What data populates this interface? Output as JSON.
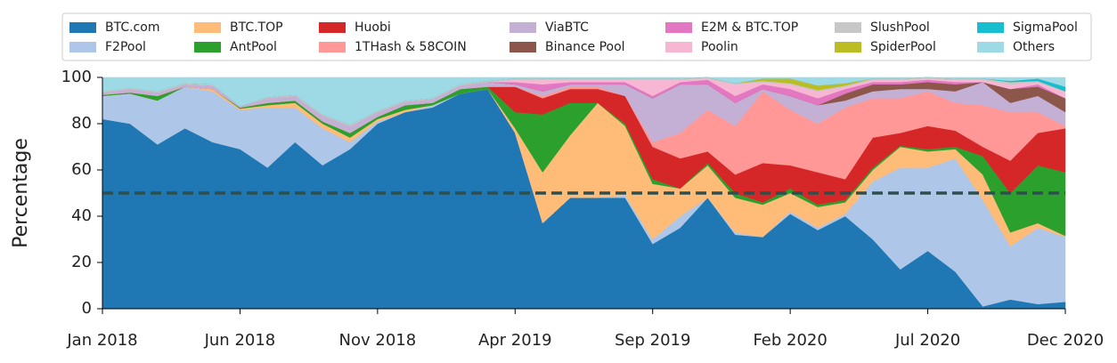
{
  "chart_data": {
    "type": "stacked_area",
    "y_label": "Percentage",
    "x": [
      "2018-01",
      "2018-02",
      "2018-03",
      "2018-04",
      "2018-05",
      "2018-06",
      "2018-07",
      "2018-08",
      "2018-09",
      "2018-10",
      "2018-11",
      "2018-12",
      "2019-01",
      "2019-02",
      "2019-03",
      "2019-04",
      "2019-05",
      "2019-06",
      "2019-07",
      "2019-08",
      "2019-09",
      "2019-10",
      "2019-11",
      "2019-12",
      "2020-01",
      "2020-02",
      "2020-03",
      "2020-04",
      "2020-05",
      "2020-06",
      "2020-07",
      "2020-08",
      "2020-09",
      "2020-10",
      "2020-11",
      "2020-12"
    ],
    "xticks": [
      {
        "value": "2018-01",
        "label": "Jan 2018"
      },
      {
        "value": "2018-06",
        "label": "Jun 2018"
      },
      {
        "value": "2018-11",
        "label": "Nov 2018"
      },
      {
        "value": "2019-04",
        "label": "Apr 2019"
      },
      {
        "value": "2019-09",
        "label": "Sep 2019"
      },
      {
        "value": "2020-02",
        "label": "Feb 2020"
      },
      {
        "value": "2020-07",
        "label": "Jul 2020"
      },
      {
        "value": "2020-12",
        "label": "Dec 2020"
      }
    ],
    "ylim": [
      0,
      100
    ],
    "yticks": [
      0,
      20,
      40,
      60,
      80,
      100
    ],
    "reference_line": {
      "value": 50,
      "color": "#2f4f4f"
    },
    "series": [
      {
        "name": "BTC.com",
        "color": "#1f77b4",
        "values": [
          82,
          80,
          71,
          78,
          72,
          69,
          61,
          72,
          62,
          69,
          80,
          85,
          87,
          93,
          95,
          76,
          37,
          48,
          48,
          48,
          28,
          35,
          48,
          32,
          31,
          41,
          34,
          40,
          30,
          17,
          25,
          16,
          1,
          4,
          2,
          3
        ]
      },
      {
        "name": "F2Pool",
        "color": "#aec7e8",
        "values": [
          10,
          13,
          19,
          18,
          22,
          17,
          26,
          15,
          16,
          3,
          1,
          0,
          1,
          0,
          0,
          0,
          0,
          0,
          0,
          1,
          2,
          5,
          0,
          1,
          0,
          1,
          1,
          1,
          25,
          44,
          36,
          49,
          46,
          23,
          33,
          28
        ]
      },
      {
        "name": "BTC.TOP",
        "color": "#ffbb78",
        "values": [
          0,
          0,
          0,
          0,
          1,
          0.5,
          1,
          2,
          2,
          2,
          1,
          1,
          0,
          0,
          0,
          2,
          22,
          27,
          41,
          30,
          24,
          12,
          14,
          15,
          14,
          8,
          9,
          5,
          5,
          9,
          7,
          4,
          11,
          6,
          2,
          0.5
        ]
      },
      {
        "name": "AntPool",
        "color": "#2ca02c",
        "values": [
          0.5,
          0.5,
          2,
          0,
          0,
          0.5,
          1,
          1,
          1,
          2,
          1,
          2,
          1,
          2,
          1,
          7,
          25,
          14,
          0,
          1,
          2,
          0,
          1,
          2,
          1,
          2,
          1,
          1,
          1,
          0.5,
          1,
          1,
          8,
          17,
          25,
          27.5
        ]
      },
      {
        "name": "Huobi",
        "color": "#d62728",
        "values": [
          0,
          0,
          0,
          0,
          0,
          0,
          0,
          0,
          0,
          0,
          0,
          0,
          0,
          0,
          0,
          11,
          7,
          6,
          6,
          12,
          14,
          13,
          5,
          8,
          17,
          10,
          14,
          9,
          13,
          5.5,
          10,
          7,
          4,
          14,
          14,
          19
        ]
      },
      {
        "name": "1THash & 58COIN",
        "color": "#ff9896",
        "values": [
          0,
          0,
          0,
          0,
          0,
          0,
          0,
          0,
          0,
          0,
          0,
          0,
          0,
          0,
          0,
          0,
          1,
          1,
          1,
          0,
          2,
          11,
          18,
          21,
          31,
          24,
          21,
          31,
          17,
          15,
          15,
          12,
          18,
          21,
          9,
          1
        ]
      },
      {
        "name": "ViaBTC",
        "color": "#c5b0d5",
        "values": [
          1,
          1.5,
          1.5,
          1,
          1.5,
          0.5,
          2,
          2,
          2.5,
          3,
          2,
          1.5,
          1.5,
          1.5,
          2,
          1,
          2,
          1,
          1,
          5,
          19,
          21,
          11,
          10,
          1,
          6,
          8,
          3,
          3,
          4,
          1,
          5,
          10,
          4,
          7,
          6
        ]
      },
      {
        "name": "Binance Pool",
        "color": "#8c564b",
        "values": [
          0,
          0,
          0,
          0,
          0,
          0,
          0,
          0,
          0,
          0,
          0,
          0,
          0,
          0,
          0,
          0,
          0,
          0,
          0,
          0,
          0,
          0,
          0,
          0,
          0,
          0,
          0,
          3,
          3,
          2,
          3,
          3,
          0,
          6,
          4,
          6
        ]
      },
      {
        "name": "E2M & BTC.TOP",
        "color": "#e377c2",
        "values": [
          0,
          0,
          0,
          0,
          0,
          0,
          0,
          0,
          0,
          0,
          0,
          0,
          0,
          0,
          0,
          1,
          3,
          1,
          1,
          1,
          1,
          1,
          2,
          3,
          2,
          3,
          3,
          2,
          1,
          1,
          1,
          1,
          0,
          0,
          1,
          0
        ]
      },
      {
        "name": "Poolin",
        "color": "#f7b6d2",
        "values": [
          0,
          0,
          0,
          0,
          0,
          0,
          0,
          0,
          0,
          0,
          0,
          0,
          0,
          0,
          0,
          1,
          2,
          1,
          1,
          1,
          7,
          1,
          0.5,
          5,
          1,
          2,
          3,
          1,
          1,
          1,
          0.5,
          1,
          1,
          2,
          1,
          3
        ]
      },
      {
        "name": "SlushPool",
        "color": "#c7c7c7",
        "values": [
          0.5,
          0.5,
          0.5,
          0.5,
          0.5,
          0,
          0.5,
          0.5,
          0.5,
          0.5,
          0.5,
          0.5,
          0.5,
          0.5,
          0.5,
          0.5,
          0.5,
          0.5,
          0.5,
          0.5,
          0.5,
          0.5,
          0.5,
          0.5,
          0.5,
          0.5,
          0.5,
          0.5,
          0.5,
          0.5,
          0.5,
          0.5,
          0.5,
          1,
          0.5,
          0
        ]
      },
      {
        "name": "SpiderPool",
        "color": "#bcbd22",
        "values": [
          0,
          0,
          0,
          0,
          0,
          0,
          0,
          0,
          0,
          0,
          0,
          0,
          0,
          0,
          0,
          0,
          0,
          0,
          0,
          0,
          0,
          0,
          0,
          0,
          1,
          2,
          2,
          1,
          0,
          0,
          0,
          0,
          0,
          0,
          0,
          0
        ]
      },
      {
        "name": "SigmaPool",
        "color": "#17becf",
        "values": [
          0,
          0,
          0,
          0,
          0,
          0,
          0,
          0,
          0,
          0,
          0,
          0,
          0,
          0,
          0,
          0,
          0,
          0,
          0,
          0,
          0,
          0,
          0,
          0,
          0,
          0,
          0,
          0,
          0,
          0,
          0,
          0,
          0,
          0.5,
          1,
          2
        ]
      },
      {
        "name": "Others",
        "color": "#9edae5",
        "values": [
          6,
          4.5,
          6,
          2.5,
          3,
          12.5,
          8.5,
          7.5,
          16,
          20.5,
          14.5,
          10,
          9,
          3,
          1.5,
          0.5,
          0.5,
          0.5,
          0.5,
          0.5,
          0.5,
          0.5,
          0,
          2.5,
          0.5,
          0.5,
          3.5,
          2.5,
          0.5,
          0.5,
          0,
          0.5,
          0.5,
          1.5,
          0.5,
          4
        ]
      }
    ]
  }
}
